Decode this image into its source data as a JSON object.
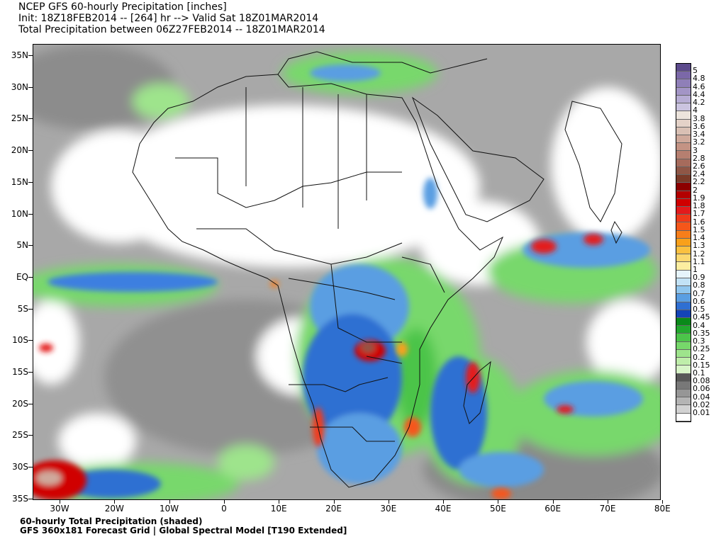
{
  "header": {
    "line1": "NCEP GFS 60-hourly Precipitation [inches]",
    "line2": "Init: 18Z18FEB2014 -- [264] hr --> Valid Sat 18Z01MAR2014",
    "line3": "Total Precipitation between 06Z27FEB2014 -- 18Z01MAR2014"
  },
  "footer": {
    "line1": "60-hourly Total Precipitation (shaded)",
    "line2": "GFS 360x181 Forecast Grid | Global Spectral Model [T190 Extended]"
  },
  "lat_labels": [
    "35N",
    "30N",
    "25N",
    "20N",
    "15N",
    "10N",
    "5N",
    "EQ",
    "5S",
    "10S",
    "15S",
    "20S",
    "25S",
    "30S",
    "35S"
  ],
  "lon_labels": [
    "30W",
    "20W",
    "10W",
    "0",
    "10E",
    "20E",
    "30E",
    "40E",
    "50E",
    "60E",
    "70E",
    "80E"
  ],
  "legend": {
    "values": [
      "5",
      "4.8",
      "4.6",
      "4.4",
      "4.2",
      "4",
      "3.8",
      "3.6",
      "3.4",
      "3.2",
      "3",
      "2.8",
      "2.6",
      "2.4",
      "2.2",
      "2",
      "1.9",
      "1.8",
      "1.7",
      "1.6",
      "1.5",
      "1.4",
      "1.3",
      "1.2",
      "1.1",
      "1",
      "0.9",
      "0.8",
      "0.7",
      "0.6",
      "0.5",
      "0.45",
      "0.4",
      "0.35",
      "0.3",
      "0.25",
      "0.2",
      "0.15",
      "0.1",
      "0.08",
      "0.06",
      "0.04",
      "0.02",
      "0.01"
    ],
    "colors": [
      "#5c4a8c",
      "#7b68a8",
      "#8f7fb8",
      "#a395c6",
      "#b7add4",
      "#cbc4e0",
      "#ece4dc",
      "#e4d2c8",
      "#d9c0b4",
      "#cfa99b",
      "#c49384",
      "#b67f70",
      "#a66b5c",
      "#8f5646",
      "#7a3a28",
      "#8c0000",
      "#b30000",
      "#d00000",
      "#e41a1c",
      "#f03a1a",
      "#f5561a",
      "#f77e1a",
      "#f9a01a",
      "#fbc040",
      "#fcd870",
      "#fdeea0",
      "#e6f4fb",
      "#c2e2f6",
      "#90c6ee",
      "#5a9ee2",
      "#2f6fd2",
      "#1444b8",
      "#0a8a1a",
      "#22a82e",
      "#4cc44a",
      "#76d86a",
      "#9ee48c",
      "#bfeeaa",
      "#d8f5c8",
      "#585858",
      "#787878",
      "#969696",
      "#b4b4b4",
      "#d2d2d2",
      "#ffffff"
    ]
  }
}
